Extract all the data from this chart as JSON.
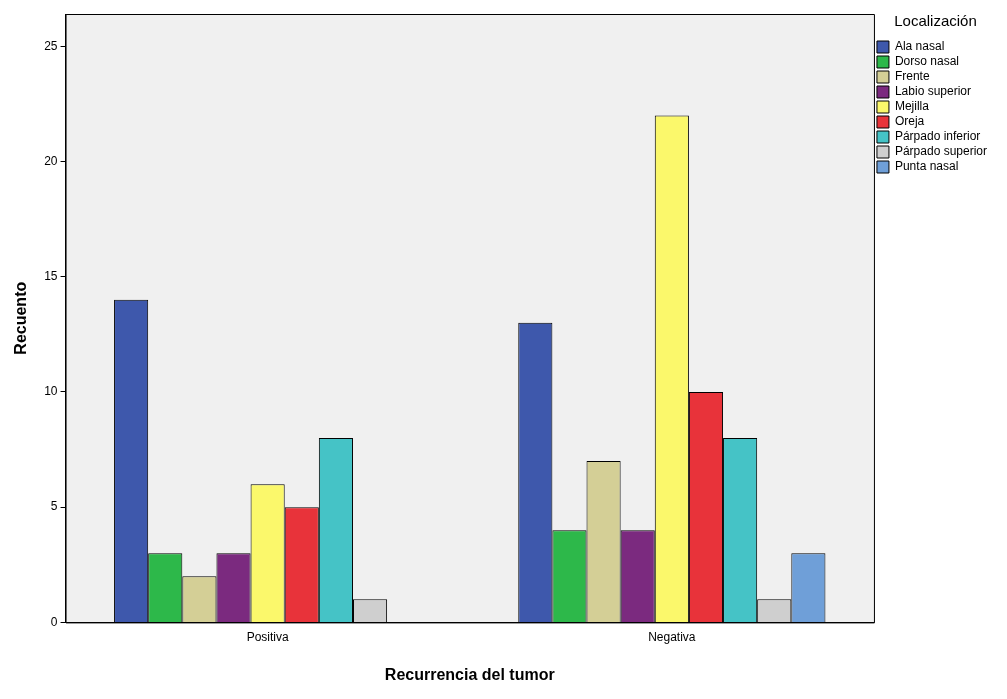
{
  "chart_data": {
    "type": "bar",
    "xlabel": "Recurrencia del tumor",
    "ylabel": "Recuento",
    "legend_title": "Localización",
    "legend": "top right",
    "grid": false,
    "categories": [
      "Positiva",
      "Negativa"
    ],
    "ylim": [
      0,
      26.4
    ],
    "yticks": [
      0,
      5,
      10,
      15,
      20,
      25
    ],
    "series": [
      {
        "name": "Ala nasal",
        "color": "#3e58ac",
        "values": [
          14,
          13
        ]
      },
      {
        "name": "Dorso nasal",
        "color": "#2db84a",
        "values": [
          3,
          4
        ]
      },
      {
        "name": "Frente",
        "color": "#d4cf96",
        "values": [
          2,
          7
        ]
      },
      {
        "name": "Labio superior",
        "color": "#7b2a7f",
        "values": [
          3,
          4
        ]
      },
      {
        "name": "Mejilla",
        "color": "#fbf86b",
        "values": [
          6,
          22
        ]
      },
      {
        "name": "Oreja",
        "color": "#e8333a",
        "values": [
          5,
          10
        ]
      },
      {
        "name": "Párpado inferior",
        "color": "#45c3c6",
        "values": [
          8,
          8
        ]
      },
      {
        "name": "Párpado superior",
        "color": "#cfcfcf",
        "values": [
          1,
          1
        ]
      },
      {
        "name": "Punta nasal",
        "color": "#6f9fd8",
        "values": [
          null,
          3
        ]
      }
    ]
  }
}
